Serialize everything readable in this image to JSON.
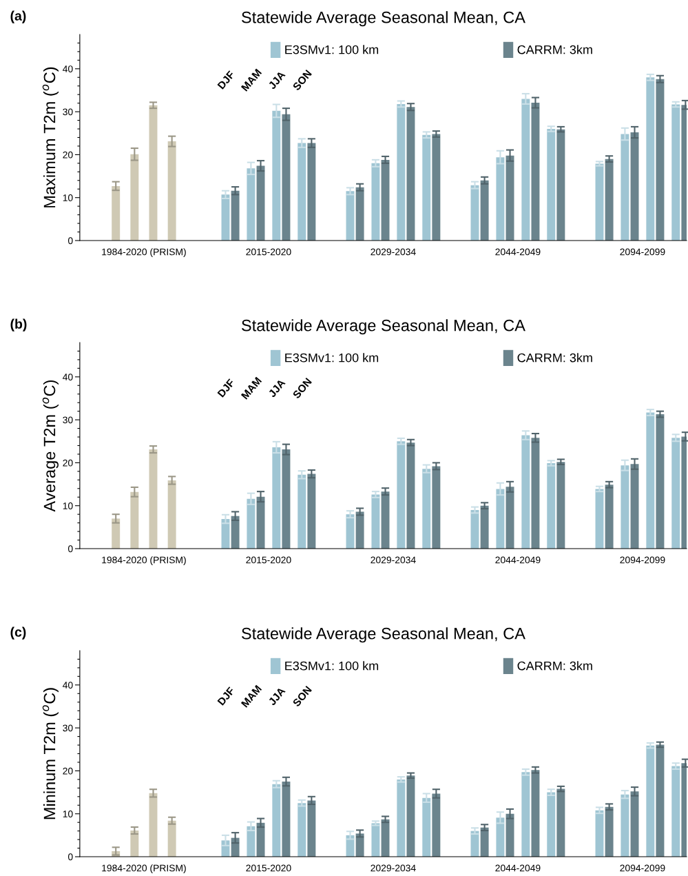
{
  "chart_data": [
    {
      "type": "bar",
      "title": "Statewide Average Seasonal Mean, CA",
      "ylabel": "Maximum T2m ($^{o}$C)",
      "annotations": [
        "(a)",
        "DJF",
        "MAM",
        "JJA",
        "SON"
      ],
      "categories": [
        "1984-2020 (PRISM)",
        "2015-2020",
        "2029-2034",
        "2044-2049",
        "2094-2099"
      ],
      "ylim": [
        0,
        48
      ],
      "yticks": [
        0,
        {
          "value": 2,
          "label": null
        },
        {
          "value": 4,
          "label": null
        },
        {
          "value": 6,
          "label": null
        },
        {
          "value": 8,
          "label": null
        },
        10,
        {
          "value": 12,
          "label": null
        },
        {
          "value": 14,
          "label": null
        },
        {
          "value": 16,
          "label": null
        },
        {
          "value": 18,
          "label": null
        },
        20,
        {
          "value": 22,
          "label": null
        },
        {
          "value": 24,
          "label": null
        },
        {
          "value": 26,
          "label": null
        },
        {
          "value": 28,
          "label": null
        },
        30,
        {
          "value": 32,
          "label": null
        },
        {
          "value": 34,
          "label": null
        },
        {
          "value": 36,
          "label": null
        },
        {
          "value": 38,
          "label": null
        },
        40,
        {
          "value": 42,
          "label": null
        },
        {
          "value": 44,
          "label": null
        },
        {
          "value": 46,
          "label": null
        }
      ],
      "legend": "top",
      "grid": false,
      "series": [
        {
          "color": "#cfc9b4",
          "values": [
            12.7,
            null,
            null,
            null,
            null
          ],
          "errors": [
            1.0,
            null,
            null,
            null,
            null
          ]
        },
        {
          "name": "E3SMv1: 100 km",
          "color": "#9fc5d3",
          "values": [
            null,
            10.7,
            11.5,
            12.9,
            17.9
          ],
          "errors": [
            null,
            0.9,
            0.8,
            0.8,
            0.5
          ]
        },
        {
          "name": "CARRM: 3km",
          "color": "#6b848d",
          "values": [
            null,
            11.6,
            12.4,
            14.0,
            19.0
          ],
          "errors": [
            null,
            0.9,
            0.8,
            0.8,
            0.7
          ]
        },
        {
          "color": "#cfc9b4",
          "values": [
            20.1,
            null,
            null,
            null,
            null
          ],
          "errors": [
            1.4,
            null,
            null,
            null,
            null
          ]
        },
        {
          "color": "#9fc5d3",
          "values": [
            null,
            16.8,
            18.0,
            19.4,
            24.8
          ],
          "errors": [
            null,
            1.4,
            0.8,
            1.5,
            1.4
          ]
        },
        {
          "color": "#6b848d",
          "values": [
            null,
            17.4,
            18.8,
            19.8,
            25.2
          ],
          "errors": [
            null,
            1.2,
            0.8,
            1.3,
            1.3
          ]
        },
        {
          "color": "#cfc9b4",
          "values": [
            31.5,
            null,
            null,
            null,
            null
          ],
          "errors": [
            0.7,
            null,
            null,
            null,
            null
          ]
        },
        {
          "color": "#9fc5d3",
          "values": [
            null,
            30.2,
            31.8,
            33.0,
            38.0
          ],
          "errors": [
            null,
            1.5,
            0.7,
            1.2,
            0.7
          ]
        },
        {
          "color": "#6b848d",
          "values": [
            null,
            29.4,
            31.1,
            32.1,
            37.6
          ],
          "errors": [
            null,
            1.4,
            0.8,
            1.2,
            0.8
          ]
        },
        {
          "color": "#cfc9b4",
          "values": [
            23.1,
            null,
            null,
            null,
            null
          ],
          "errors": [
            1.2,
            null,
            null,
            null,
            null
          ]
        },
        {
          "color": "#9fc5d3",
          "values": [
            null,
            22.7,
            24.6,
            26.0,
            31.7
          ],
          "errors": [
            null,
            1.0,
            0.7,
            0.6,
            0.6
          ]
        },
        {
          "color": "#6b848d",
          "values": [
            null,
            22.7,
            24.8,
            25.9,
            31.6
          ],
          "errors": [
            null,
            1.0,
            0.7,
            0.6,
            1.0
          ]
        }
      ]
    },
    {
      "type": "bar",
      "title": "Statewide Average Seasonal Mean, CA",
      "ylabel": "Average T2m ($^{o}$C)",
      "annotations": [
        "(b)",
        "DJF",
        "MAM",
        "JJA",
        "SON"
      ],
      "categories": [
        "1984-2020 (PRISM)",
        "2015-2020",
        "2029-2034",
        "2044-2049",
        "2094-2099"
      ],
      "ylim": [
        0,
        48
      ],
      "yticks": [
        0,
        {
          "value": 2,
          "label": null
        },
        {
          "value": 4,
          "label": null
        },
        {
          "value": 6,
          "label": null
        },
        {
          "value": 8,
          "label": null
        },
        10,
        {
          "value": 12,
          "label": null
        },
        {
          "value": 14,
          "label": null
        },
        {
          "value": 16,
          "label": null
        },
        {
          "value": 18,
          "label": null
        },
        20,
        {
          "value": 22,
          "label": null
        },
        {
          "value": 24,
          "label": null
        },
        {
          "value": 26,
          "label": null
        },
        {
          "value": 28,
          "label": null
        },
        30,
        {
          "value": 32,
          "label": null
        },
        {
          "value": 34,
          "label": null
        },
        {
          "value": 36,
          "label": null
        },
        {
          "value": 38,
          "label": null
        },
        40,
        {
          "value": 42,
          "label": null
        },
        {
          "value": 44,
          "label": null
        },
        {
          "value": 46,
          "label": null
        }
      ],
      "legend": "top",
      "grid": false,
      "series": [
        {
          "color": "#cfc9b4",
          "values": [
            7.0,
            null,
            null,
            null,
            null
          ],
          "errors": [
            1.0,
            null,
            null,
            null,
            null
          ]
        },
        {
          "name": "E3SMv1: 100 km",
          "color": "#9fc5d3",
          "values": [
            null,
            6.9,
            8.0,
            9.0,
            13.9
          ],
          "errors": [
            null,
            1.0,
            0.8,
            0.7,
            0.6
          ]
        },
        {
          "name": "CARRM: 3km",
          "color": "#6b848d",
          "values": [
            null,
            7.6,
            8.6,
            10.0,
            14.9
          ],
          "errors": [
            null,
            1.0,
            0.8,
            0.7,
            0.7
          ]
        },
        {
          "color": "#cfc9b4",
          "values": [
            13.2,
            null,
            null,
            null,
            null
          ],
          "errors": [
            1.1,
            null,
            null,
            null,
            null
          ]
        },
        {
          "color": "#9fc5d3",
          "values": [
            null,
            11.6,
            12.6,
            13.9,
            19.4
          ],
          "errors": [
            null,
            1.3,
            0.7,
            1.4,
            1.2
          ]
        },
        {
          "color": "#6b848d",
          "values": [
            null,
            12.1,
            13.3,
            14.4,
            19.7
          ],
          "errors": [
            null,
            1.2,
            0.8,
            1.2,
            1.2
          ]
        },
        {
          "color": "#cfc9b4",
          "values": [
            23.1,
            null,
            null,
            null,
            null
          ],
          "errors": [
            0.8,
            null,
            null,
            null,
            null
          ]
        },
        {
          "color": "#9fc5d3",
          "values": [
            null,
            23.6,
            25.0,
            26.4,
            31.7
          ],
          "errors": [
            null,
            1.3,
            0.7,
            1.0,
            0.7
          ]
        },
        {
          "color": "#6b848d",
          "values": [
            null,
            23.1,
            24.7,
            25.8,
            31.3
          ],
          "errors": [
            null,
            1.2,
            0.7,
            1.0,
            0.7
          ]
        },
        {
          "color": "#cfc9b4",
          "values": [
            15.9,
            null,
            null,
            null,
            null
          ],
          "errors": [
            0.9,
            null,
            null,
            null,
            null
          ]
        },
        {
          "color": "#9fc5d3",
          "values": [
            null,
            17.2,
            18.6,
            19.9,
            25.8
          ],
          "errors": [
            null,
            0.9,
            0.9,
            0.6,
            0.8
          ]
        },
        {
          "color": "#6b848d",
          "values": [
            null,
            17.4,
            19.2,
            20.2,
            26.1
          ],
          "errors": [
            null,
            0.9,
            0.8,
            0.6,
            1.0
          ]
        }
      ]
    },
    {
      "type": "bar",
      "title": "Statewide Average Seasonal Mean, CA",
      "ylabel": "Mininum T2m ($^{o}$C)",
      "annotations": [
        "(c)",
        "DJF",
        "MAM",
        "JJA",
        "SON"
      ],
      "categories": [
        "1984-2020 (PRISM)",
        "2015-2020",
        "2029-2034",
        "2044-2049",
        "2094-2099"
      ],
      "ylim": [
        0,
        48
      ],
      "yticks": [
        0,
        {
          "value": 2,
          "label": null
        },
        {
          "value": 4,
          "label": null
        },
        {
          "value": 6,
          "label": null
        },
        {
          "value": 8,
          "label": null
        },
        10,
        {
          "value": 12,
          "label": null
        },
        {
          "value": 14,
          "label": null
        },
        {
          "value": 16,
          "label": null
        },
        {
          "value": 18,
          "label": null
        },
        20,
        {
          "value": 22,
          "label": null
        },
        {
          "value": 24,
          "label": null
        },
        {
          "value": 26,
          "label": null
        },
        {
          "value": 28,
          "label": null
        },
        30,
        {
          "value": 32,
          "label": null
        },
        {
          "value": 34,
          "label": null
        },
        {
          "value": 36,
          "label": null
        },
        {
          "value": 38,
          "label": null
        },
        40,
        {
          "value": 42,
          "label": null
        },
        {
          "value": 44,
          "label": null
        },
        {
          "value": 46,
          "label": null
        }
      ],
      "legend": "top",
      "grid": false,
      "series": [
        {
          "color": "#cfc9b4",
          "values": [
            1.3,
            null,
            null,
            null,
            null
          ],
          "errors": [
            0.9,
            null,
            null,
            null,
            null
          ]
        },
        {
          "name": "E3SMv1: 100 km",
          "color": "#9fc5d3",
          "values": [
            null,
            3.8,
            5.0,
            6.0,
            10.8
          ],
          "errors": [
            null,
            1.2,
            0.9,
            0.7,
            0.7
          ]
        },
        {
          "name": "CARRM: 3km",
          "color": "#6b848d",
          "values": [
            null,
            4.4,
            5.4,
            6.8,
            11.6
          ],
          "errors": [
            null,
            1.2,
            0.8,
            0.7,
            0.7
          ]
        },
        {
          "color": "#cfc9b4",
          "values": [
            6.1,
            null,
            null,
            null,
            null
          ],
          "errors": [
            0.8,
            null,
            null,
            null,
            null
          ]
        },
        {
          "color": "#9fc5d3",
          "values": [
            null,
            7.1,
            7.8,
            9.1,
            14.5
          ],
          "errors": [
            null,
            1.0,
            0.5,
            1.3,
            0.9
          ]
        },
        {
          "color": "#6b848d",
          "values": [
            null,
            7.9,
            8.7,
            10.0,
            15.2
          ],
          "errors": [
            null,
            1.0,
            0.7,
            1.1,
            1.0
          ]
        },
        {
          "color": "#cfc9b4",
          "values": [
            14.8,
            null,
            null,
            null,
            null
          ],
          "errors": [
            0.9,
            null,
            null,
            null,
            null
          ]
        },
        {
          "color": "#9fc5d3",
          "values": [
            null,
            16.9,
            18.0,
            19.7,
            25.9
          ],
          "errors": [
            null,
            0.8,
            0.6,
            0.7,
            0.6
          ]
        },
        {
          "color": "#6b848d",
          "values": [
            null,
            17.5,
            18.9,
            20.2,
            26.1
          ],
          "errors": [
            null,
            1.0,
            0.6,
            0.7,
            0.6
          ]
        },
        {
          "color": "#cfc9b4",
          "values": [
            8.4,
            null,
            null,
            null,
            null
          ],
          "errors": [
            0.8,
            null,
            null,
            null,
            null
          ]
        },
        {
          "color": "#9fc5d3",
          "values": [
            null,
            12.5,
            13.7,
            15.0,
            21.1
          ],
          "errors": [
            null,
            0.7,
            1.0,
            0.7,
            0.7
          ]
        },
        {
          "color": "#6b848d",
          "values": [
            null,
            13.1,
            14.7,
            15.8,
            21.8
          ],
          "errors": [
            null,
            0.9,
            1.0,
            0.6,
            0.9
          ]
        }
      ]
    }
  ]
}
